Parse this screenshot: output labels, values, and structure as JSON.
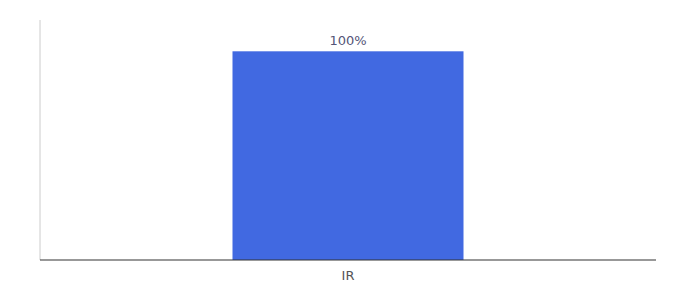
{
  "chart_data": {
    "type": "bar",
    "categories": [
      "IR"
    ],
    "values": [
      100
    ],
    "value_labels": [
      "100%"
    ],
    "color": "#4169E1",
    "ylim": [
      0,
      115
    ],
    "data_labels": true,
    "tick_labels": "x",
    "grid": false
  }
}
